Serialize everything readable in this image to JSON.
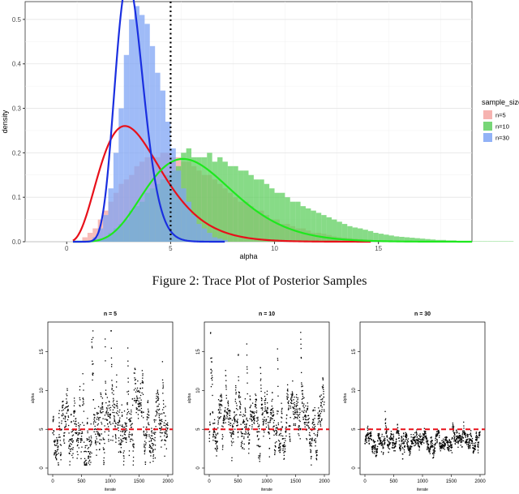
{
  "caption": "Figure 2: Trace Plot of Posterior Samples",
  "chart_data": [
    {
      "type": "histogram-density",
      "xlabel": "alpha",
      "ylabel": "density",
      "xlim": [
        -2,
        19.5
      ],
      "ylim": [
        0,
        0.54
      ],
      "x_ticks": [
        0,
        5,
        10,
        15
      ],
      "y_ticks": [
        0.0,
        0.1,
        0.2,
        0.3,
        0.4,
        0.5
      ],
      "x_tick_labels": [
        "0",
        "5",
        "10",
        "15"
      ],
      "y_tick_labels": [
        "0.0",
        "0.1",
        "0.2",
        "0.3",
        "0.4",
        "0.5"
      ],
      "vline": 5,
      "legend": {
        "title": "sample_size",
        "position": "right"
      },
      "bin_width": 0.25,
      "series": [
        {
          "name": "n=5",
          "fill": "#f4a6a2",
          "curve_color": "#e8101a",
          "bin_start": 0.75,
          "bars": [
            0.01,
            0.02,
            0.03,
            0.05,
            0.07,
            0.09,
            0.11,
            0.13,
            0.14,
            0.15,
            0.17,
            0.18,
            0.19,
            0.19,
            0.19,
            0.2,
            0.2,
            0.19,
            0.19,
            0.18,
            0.18,
            0.17,
            0.16,
            0.15,
            0.15,
            0.14,
            0.13,
            0.12,
            0.11,
            0.1,
            0.09,
            0.09,
            0.08,
            0.07,
            0.07,
            0.06,
            0.05,
            0.05,
            0.04,
            0.04,
            0.035,
            0.03,
            0.03,
            0.025,
            0.02,
            0.02,
            0.018,
            0.015,
            0.012,
            0.01,
            0.009,
            0.008,
            0.007,
            0.006,
            0.005,
            0.004,
            0.003,
            0.003,
            0.002,
            0.002
          ],
          "curve": {
            "shape": 4.5,
            "scale": 0.8
          }
        },
        {
          "name": "n=10",
          "fill": "#5fcf5f",
          "curve_color": "#1ee81e",
          "bin_start": 1.5,
          "bars": [
            0.005,
            0.01,
            0.02,
            0.03,
            0.04,
            0.05,
            0.07,
            0.08,
            0.09,
            0.11,
            0.12,
            0.13,
            0.14,
            0.15,
            0.16,
            0.17,
            0.2,
            0.21,
            0.19,
            0.19,
            0.19,
            0.2,
            0.18,
            0.19,
            0.18,
            0.17,
            0.17,
            0.16,
            0.16,
            0.15,
            0.14,
            0.14,
            0.13,
            0.12,
            0.11,
            0.11,
            0.1,
            0.09,
            0.09,
            0.08,
            0.075,
            0.07,
            0.065,
            0.06,
            0.055,
            0.05,
            0.045,
            0.04,
            0.035,
            0.032,
            0.03,
            0.027,
            0.024,
            0.02,
            0.018,
            0.016,
            0.014,
            0.012,
            0.011,
            0.01,
            0.009,
            0.008,
            0.007,
            0.006,
            0.005,
            0.004,
            0.004,
            0.003,
            0.003,
            0.002,
            0.002,
            0.002,
            0.001,
            0.001,
            0.001,
            0.001,
            0.001,
            0.001,
            0.001,
            0.001
          ],
          "curve": {
            "shape": 8.0,
            "scale": 0.8
          }
        },
        {
          "name": "n=30",
          "fill": "#7fa4f4",
          "curve_color": "#1a2fe0",
          "bin_start": 1.25,
          "bars": [
            0.01,
            0.03,
            0.06,
            0.12,
            0.2,
            0.3,
            0.42,
            0.5,
            0.53,
            0.51,
            0.49,
            0.44,
            0.38,
            0.34,
            0.27,
            0.21,
            0.16,
            0.12,
            0.09,
            0.06,
            0.04,
            0.03,
            0.02,
            0.01,
            0.007,
            0.004
          ],
          "curve": {
            "shape": 20.0,
            "scale": 0.155
          }
        }
      ]
    },
    {
      "type": "scatter",
      "title": "n = 5",
      "xlabel": "iterate",
      "ylabel": "alpha",
      "xlim": [
        0,
        2000
      ],
      "ylim": [
        0,
        18
      ],
      "x_ticks": [
        0,
        500,
        1000,
        1500,
        2000
      ],
      "y_ticks": [
        0,
        5,
        10,
        15
      ],
      "hline": 5,
      "n_points": 2000,
      "mean": 4.9,
      "spread": 2.6
    },
    {
      "type": "scatter",
      "title": "n = 10",
      "xlabel": "iterate",
      "ylabel": "alpha",
      "xlim": [
        0,
        2000
      ],
      "ylim": [
        0,
        18
      ],
      "x_ticks": [
        0,
        500,
        1000,
        1500,
        2000
      ],
      "y_ticks": [
        0,
        5,
        10,
        15
      ],
      "hline": 5,
      "n_points": 2000,
      "mean": 5.6,
      "spread": 2.1
    },
    {
      "type": "scatter",
      "title": "n = 30",
      "xlabel": "iterate",
      "ylabel": "alpha",
      "xlim": [
        0,
        2000
      ],
      "ylim": [
        0,
        18
      ],
      "x_ticks": [
        0,
        500,
        1000,
        1500,
        2000
      ],
      "y_ticks": [
        0,
        5,
        10,
        15
      ],
      "hline": 5,
      "n_points": 2000,
      "mean": 3.3,
      "spread": 0.9
    }
  ]
}
